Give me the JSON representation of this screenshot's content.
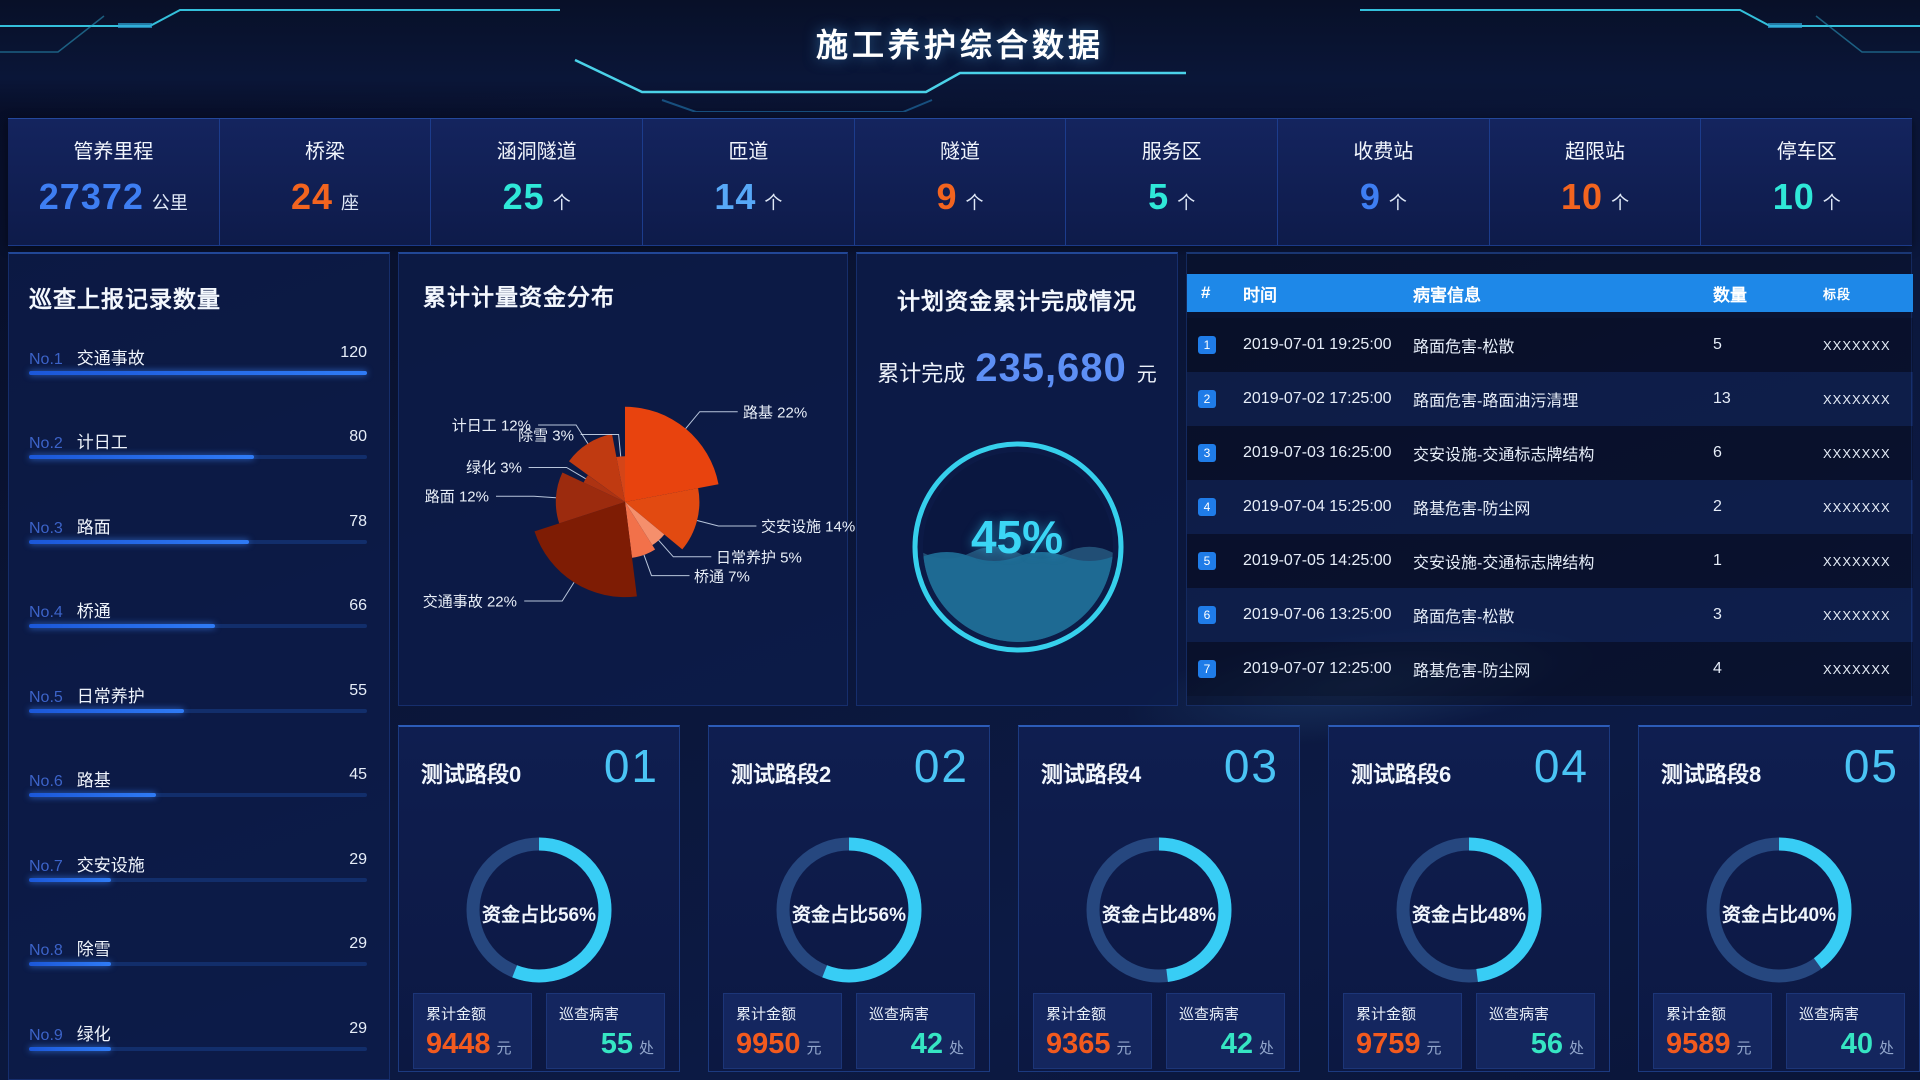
{
  "header": {
    "title": "施工养护综合数据"
  },
  "stats": {
    "items": [
      {
        "label": "管养里程",
        "value": "27372",
        "unit": "公里",
        "color": "#3e7ef2"
      },
      {
        "label": "桥梁",
        "value": "24",
        "unit": "座",
        "color": "#f2641f"
      },
      {
        "label": "涵洞隧道",
        "value": "25",
        "unit": "个",
        "color": "#2fe8d8"
      },
      {
        "label": "匝道",
        "value": "14",
        "unit": "个",
        "color": "#57a8f7"
      },
      {
        "label": "隧道",
        "value": "9",
        "unit": "个",
        "color": "#f2641f"
      },
      {
        "label": "服务区",
        "value": "5",
        "unit": "个",
        "color": "#2fe8d8"
      },
      {
        "label": "收费站",
        "value": "9",
        "unit": "个",
        "color": "#3e7ef2"
      },
      {
        "label": "超限站",
        "value": "10",
        "unit": "个",
        "color": "#f2641f"
      },
      {
        "label": "停车区",
        "value": "10",
        "unit": "个",
        "color": "#2fe8d8"
      }
    ]
  },
  "patrol": {
    "title": "巡查上报记录数量",
    "max": 120,
    "items": [
      {
        "rank": "No.1",
        "label": "交通事故",
        "value": 120
      },
      {
        "rank": "No.2",
        "label": "计日工",
        "value": 80
      },
      {
        "rank": "No.3",
        "label": "路面",
        "value": 78
      },
      {
        "rank": "No.4",
        "label": "桥通",
        "value": 66
      },
      {
        "rank": "No.5",
        "label": "日常养护",
        "value": 55
      },
      {
        "rank": "No.6",
        "label": "路基",
        "value": 45
      },
      {
        "rank": "No.7",
        "label": "交安设施",
        "value": 29
      },
      {
        "rank": "No.8",
        "label": "除雪",
        "value": 29
      },
      {
        "rank": "No.9",
        "label": "绿化",
        "value": 29
      }
    ]
  },
  "pie": {
    "title": "累计计量资金分布"
  },
  "gauge": {
    "title": "计划资金累计完成情况",
    "prefix": "累计完成",
    "amount": "235,680",
    "unit": "元",
    "percent": "45%",
    "percent_value": 45
  },
  "table": {
    "headers": [
      "#",
      "时间",
      "病害信息",
      "数量",
      "标段"
    ],
    "rows": [
      {
        "no": "1",
        "time": "2019-07-01 19:25:00",
        "info": "路面危害-松散",
        "count": "5",
        "section": "XXXXXXX"
      },
      {
        "no": "2",
        "time": "2019-07-02 17:25:00",
        "info": "路面危害-路面油污清理",
        "count": "13",
        "section": "XXXXXXX"
      },
      {
        "no": "3",
        "time": "2019-07-03 16:25:00",
        "info": "交安设施-交通标志牌结构",
        "count": "6",
        "section": "XXXXXXX"
      },
      {
        "no": "4",
        "time": "2019-07-04 15:25:00",
        "info": "路基危害-防尘网",
        "count": "2",
        "section": "XXXXXXX"
      },
      {
        "no": "5",
        "time": "2019-07-05 14:25:00",
        "info": "交安设施-交通标志牌结构",
        "count": "1",
        "section": "XXXXXXX"
      },
      {
        "no": "6",
        "time": "2019-07-06 13:25:00",
        "info": "路面危害-松散",
        "count": "3",
        "section": "XXXXXXX"
      },
      {
        "no": "7",
        "time": "2019-07-07 12:25:00",
        "info": "路基危害-防尘网",
        "count": "4",
        "section": "XXXXXXX"
      }
    ]
  },
  "cards": [
    {
      "title": "测试路段0",
      "index": "01",
      "fund_pct": 56,
      "fund_text": "资金占比56%",
      "amount_label": "累计金额",
      "amount": "9448",
      "amount_unit": "元",
      "defect_label": "巡查病害",
      "defect_count": "55",
      "defect_unit": "处"
    },
    {
      "title": "测试路段2",
      "index": "02",
      "fund_pct": 56,
      "fund_text": "资金占比56%",
      "amount_label": "累计金额",
      "amount": "9950",
      "amount_unit": "元",
      "defect_label": "巡查病害",
      "defect_count": "42",
      "defect_unit": "处"
    },
    {
      "title": "测试路段4",
      "index": "03",
      "fund_pct": 48,
      "fund_text": "资金占比48%",
      "amount_label": "累计金额",
      "amount": "9365",
      "amount_unit": "元",
      "defect_label": "巡查病害",
      "defect_count": "42",
      "defect_unit": "处"
    },
    {
      "title": "测试路段6",
      "index": "04",
      "fund_pct": 48,
      "fund_text": "资金占比48%",
      "amount_label": "累计金额",
      "amount": "9759",
      "amount_unit": "元",
      "defect_label": "巡查病害",
      "defect_count": "56",
      "defect_unit": "处"
    },
    {
      "title": "测试路段8",
      "index": "05",
      "fund_pct": 40,
      "fund_text": "资金占比40%",
      "amount_label": "累计金额",
      "amount": "9589",
      "amount_unit": "元",
      "defect_label": "巡查病害",
      "defect_count": "40",
      "defect_unit": "处"
    }
  ],
  "chart_data": [
    {
      "id": "fund-distribution-rose",
      "type": "pie",
      "subtype": "nightingale-rose",
      "title": "累计计量资金分布",
      "slices": [
        {
          "name": "路基",
          "pct": 22,
          "display": "路基 22%",
          "color": "#e8430e"
        },
        {
          "name": "交安设施",
          "pct": 14,
          "display": "交安设施 14%",
          "color": "#e24a11"
        },
        {
          "name": "日常养护",
          "pct": 5,
          "display": "日常养护 5%",
          "color": "#f58f6c"
        },
        {
          "name": "桥通",
          "pct": 7,
          "display": "桥通 7%",
          "color": "#f2714a"
        },
        {
          "name": "交通事故",
          "pct": 22,
          "display": "交通事故 22%",
          "color": "#7e1c04"
        },
        {
          "name": "路面",
          "pct": 12,
          "display": "路面 12%",
          "color": "#9c2b0e"
        },
        {
          "name": "绿化",
          "pct": 3,
          "display": "绿化 3%",
          "color": "#ad3312"
        },
        {
          "name": "计日工",
          "pct": 12,
          "display": "计日工 12%",
          "color": "#c03a11"
        },
        {
          "name": "除雪",
          "pct": 3,
          "display": "除雪 3%",
          "color": "#d44518"
        }
      ]
    },
    {
      "id": "patrol-report-bars",
      "type": "bar",
      "title": "巡查上报记录数量",
      "categories": [
        "交通事故",
        "计日工",
        "路面",
        "桥通",
        "日常养护",
        "路基",
        "交安设施",
        "除雪",
        "绿化"
      ],
      "values": [
        120,
        80,
        78,
        66,
        55,
        45,
        29,
        29,
        29
      ],
      "xlim": [
        0,
        120
      ],
      "orientation": "horizontal",
      "grid": false,
      "legend": "none"
    },
    {
      "id": "plan-completion-liquid-gauge",
      "type": "pie",
      "subtype": "liquid-fill-gauge",
      "title": "计划资金累计完成情况",
      "value": 45,
      "unit": "%",
      "annotation": "累计完成 235,680 元",
      "ring_color": "#39daf5",
      "water_color": "#256e92"
    },
    {
      "id": "section-fund-donuts",
      "type": "pie",
      "subtype": "donut-progress",
      "categories": [
        "测试路段0",
        "测试路段2",
        "测试路段4",
        "测试路段6",
        "测试路段8"
      ],
      "values": [
        56,
        56,
        48,
        48,
        40
      ],
      "value_label": "资金占比",
      "arc_color": "#38cdf5",
      "track_color": "#26477f"
    }
  ]
}
